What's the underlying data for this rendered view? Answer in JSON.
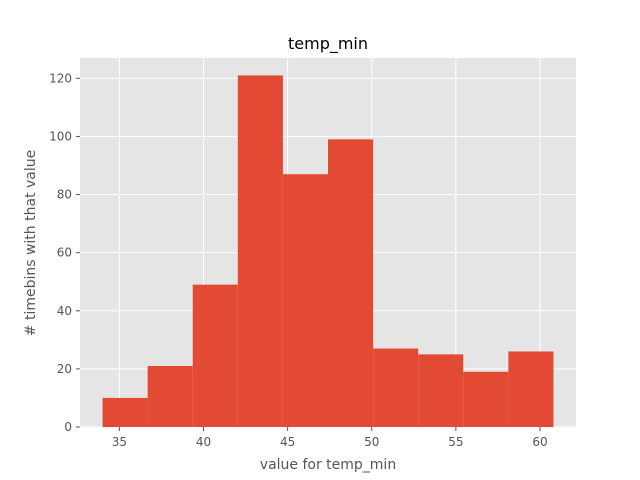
{
  "chart_data": {
    "type": "bar",
    "subtype": "histogram",
    "title": "temp_min",
    "xlabel": "value for temp_min",
    "ylabel": "# timebins with that value",
    "bin_edges": [
      34.0,
      36.68,
      39.36,
      42.04,
      44.72,
      47.4,
      50.08,
      52.76,
      55.44,
      58.12,
      60.8
    ],
    "values": [
      10,
      21,
      49,
      121,
      87,
      99,
      27,
      25,
      19,
      26
    ],
    "xlim": [
      32.66,
      62.14
    ],
    "ylim": [
      0,
      127
    ],
    "xticks": [
      35,
      40,
      45,
      50,
      55,
      60
    ],
    "yticks": [
      0,
      20,
      40,
      60,
      80,
      100,
      120
    ],
    "grid": true,
    "style": "ggplot",
    "colors": {
      "bar": "#E24A33",
      "plot_background": "#E5E5E5",
      "grid": "#FFFFFF"
    }
  }
}
